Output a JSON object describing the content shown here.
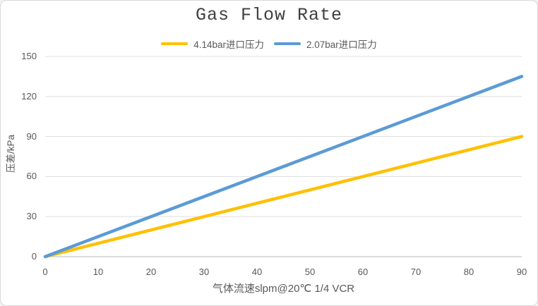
{
  "window": {
    "background": "#ffffff",
    "border_color": "#d9d9d9"
  },
  "chart_data": {
    "type": "line",
    "title": "Gas Flow Rate",
    "xlabel": "气体流速slpm@20℃ 1/4 VCR",
    "ylabel": "压差/kPa",
    "x": [
      0,
      90
    ],
    "series": [
      {
        "name": "4.14bar进口压力",
        "color": "#FFC000",
        "values": [
          0,
          90
        ]
      },
      {
        "name": "2.07bar进口压力",
        "color": "#5B9BD5",
        "values": [
          0,
          135
        ]
      }
    ],
    "xlim": [
      0,
      90
    ],
    "ylim": [
      0,
      150
    ],
    "xticks": [
      0,
      10,
      20,
      30,
      40,
      50,
      60,
      70,
      80,
      90
    ],
    "yticks": [
      0,
      30,
      60,
      90,
      120,
      150
    ],
    "grid": "horizontal-only",
    "legend_position": "top-center",
    "styles": {
      "gridline_color": "#e2e2e2",
      "axis_line_color": "#d0d0d0",
      "tick_label_color": "#595959",
      "title_color": "#404040",
      "axis_title_color": "#595959",
      "line_width": 4.5
    }
  }
}
